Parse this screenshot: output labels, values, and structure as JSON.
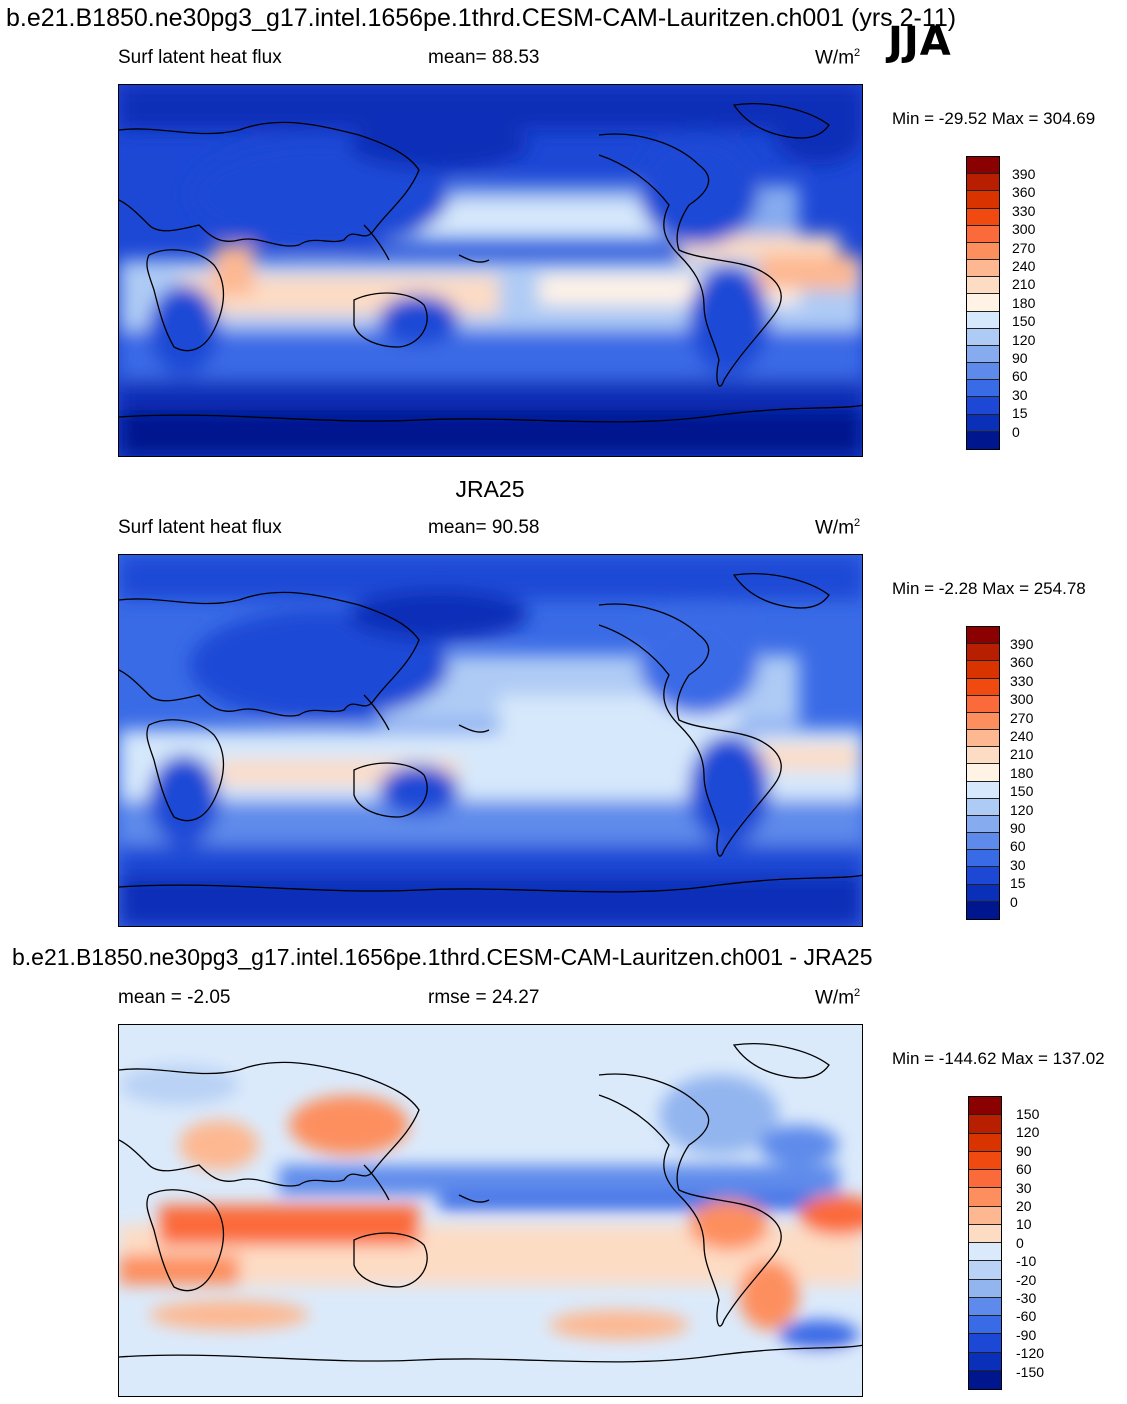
{
  "page": {
    "title": "b.e21.B1850.ne30pg3_g17.intel.1656pe.1thrd.CESM-CAM-Lauritzen.ch001 (yrs 2-11)",
    "season": "JJA"
  },
  "panels": [
    {
      "center_title": "",
      "left_label": "Surf latent heat flux",
      "center_label": "mean=  88.53",
      "units": "W/m",
      "units_sup": "2",
      "minmax": "Min = -29.52 Max = 304.69",
      "colorbar_labels": [
        "390",
        "360",
        "330",
        "300",
        "270",
        "240",
        "210",
        "180",
        "150",
        "120",
        "90",
        "60",
        "30",
        "15",
        "0"
      ],
      "colorbar_colors": [
        "#8b0000",
        "#b81e00",
        "#d93400",
        "#f04a10",
        "#fb6a3a",
        "#fd8f5f",
        "#fdb891",
        "#fddcc4",
        "#fff3e6",
        "#d6e8fb",
        "#aecbf5",
        "#86abef",
        "#5e8beb",
        "#3a6be6",
        "#1d48d6",
        "#0a2fb8",
        "#00168f"
      ]
    },
    {
      "center_title": "JRA25",
      "left_label": "Surf latent heat flux",
      "center_label": "mean=  90.58",
      "units": "W/m",
      "units_sup": "2",
      "minmax": "Min =  -2.28 Max = 254.78",
      "colorbar_labels": [
        "390",
        "360",
        "330",
        "300",
        "270",
        "240",
        "210",
        "180",
        "150",
        "120",
        "90",
        "60",
        "30",
        "15",
        "0"
      ],
      "colorbar_colors": [
        "#8b0000",
        "#b81e00",
        "#d93400",
        "#f04a10",
        "#fb6a3a",
        "#fd8f5f",
        "#fdb891",
        "#fddcc4",
        "#fff3e6",
        "#d6e8fb",
        "#aecbf5",
        "#86abef",
        "#5e8beb",
        "#3a6be6",
        "#1d48d6",
        "#0a2fb8",
        "#00168f"
      ]
    },
    {
      "center_title": "b.e21.B1850.ne30pg3_g17.intel.1656pe.1thrd.CESM-CAM-Lauritzen.ch001 - JRA25",
      "left_label": "mean =  -2.05",
      "center_label": "rmse =  24.27",
      "units": "W/m",
      "units_sup": "2",
      "minmax": "Min = -144.62 Max = 137.02",
      "colorbar_labels": [
        "150",
        "120",
        "90",
        "60",
        "30",
        "20",
        "10",
        "0",
        "-10",
        "-20",
        "-30",
        "-60",
        "-90",
        "-120",
        "-150"
      ],
      "colorbar_colors": [
        "#8b0000",
        "#b81e00",
        "#d93400",
        "#f04a10",
        "#fb6a3a",
        "#fd8f5f",
        "#fdb891",
        "#fddcc4",
        "#dbeafb",
        "#b9d2f5",
        "#93b5ef",
        "#5e8beb",
        "#3a6be6",
        "#1d48d6",
        "#0a2fb8",
        "#00168f"
      ]
    }
  ]
}
